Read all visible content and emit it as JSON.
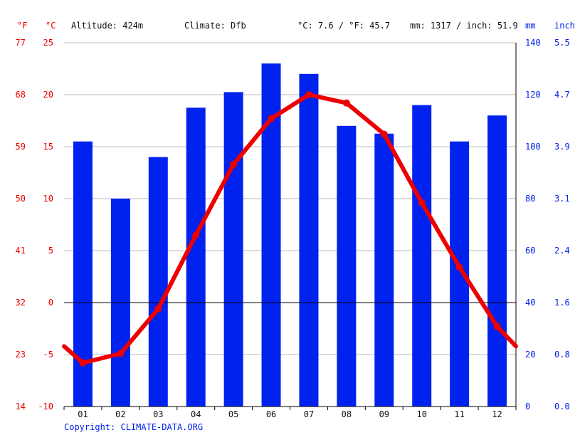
{
  "header": {
    "unit_f": "°F",
    "unit_c": "°C",
    "altitude": "Altitude: 424m",
    "climate": "Climate: Dfb",
    "temp_avg": "°C: 7.6 / °F: 45.7",
    "precip_total": "mm: 1317 / inch: 51.9",
    "unit_mm": "mm",
    "unit_inch": "inch"
  },
  "copyright": "Copyright: CLIMATE-DATA.ORG",
  "colors": {
    "temp": "#ee0000",
    "precip": "#0022ee",
    "zero_line": "#000000",
    "grid": "#bbbbbb"
  },
  "chart_data": {
    "type": "bar",
    "categories": [
      "01",
      "02",
      "03",
      "04",
      "05",
      "06",
      "07",
      "08",
      "09",
      "10",
      "11",
      "12"
    ],
    "series": [
      {
        "kind": "bar",
        "axis": "right",
        "values": [
          102,
          80,
          96,
          115,
          121,
          132,
          128,
          108,
          105,
          116,
          102,
          112
        ]
      },
      {
        "kind": "line",
        "axis": "left",
        "values": [
          -5.8,
          -4.9,
          -0.6,
          6.5,
          13.3,
          17.7,
          20.0,
          19.2,
          16.2,
          9.6,
          3.4,
          -2.3
        ]
      }
    ],
    "temp_edges": [
      -4.2,
      -4.2
    ],
    "left_axis": {
      "ylim": [
        -10,
        25
      ],
      "ticks_c": [
        "-10",
        "-5",
        "0",
        "5",
        "10",
        "15",
        "20",
        "25"
      ],
      "ticks_f": [
        "14",
        "23",
        "32",
        "41",
        "50",
        "59",
        "68",
        "77"
      ]
    },
    "right_axis": {
      "ylim": [
        0,
        140
      ],
      "ticks_mm": [
        "0",
        "20",
        "40",
        "60",
        "80",
        "100",
        "120",
        "140"
      ],
      "ticks_inch": [
        "0.0",
        "0.8",
        "1.6",
        "2.4",
        "3.1",
        "3.9",
        "4.7",
        "5.5"
      ]
    },
    "grid": true
  }
}
